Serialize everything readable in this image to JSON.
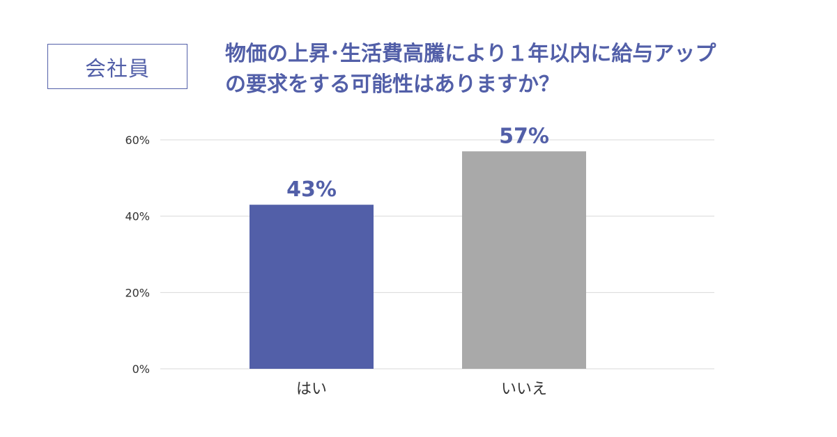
{
  "badge": {
    "label": "会社員"
  },
  "title": {
    "line1": "物価の上昇･生活費高騰により１年以内に給与アップ",
    "line2": "の要求をする可能性はありますか？"
  },
  "colors": {
    "accent": "#525fa8",
    "bar_yes": "#525fa8",
    "bar_no": "#a9a9a9",
    "grid": "#d9d9d9",
    "tick_text": "#333333"
  },
  "chart_data": {
    "type": "bar",
    "categories": [
      "はい",
      "いいえ"
    ],
    "values": [
      43,
      57
    ],
    "data_labels": [
      "43%",
      "57%"
    ],
    "bar_colors": [
      "#525fa8",
      "#a9a9a9"
    ],
    "label_colors": [
      "#525fa8",
      "#525fa8"
    ],
    "ylim": [
      0,
      60
    ],
    "yticks": [
      0,
      20,
      40,
      60
    ],
    "ytick_labels": [
      "0%",
      "20%",
      "40%",
      "60%"
    ],
    "grid": true,
    "legend": "none"
  }
}
